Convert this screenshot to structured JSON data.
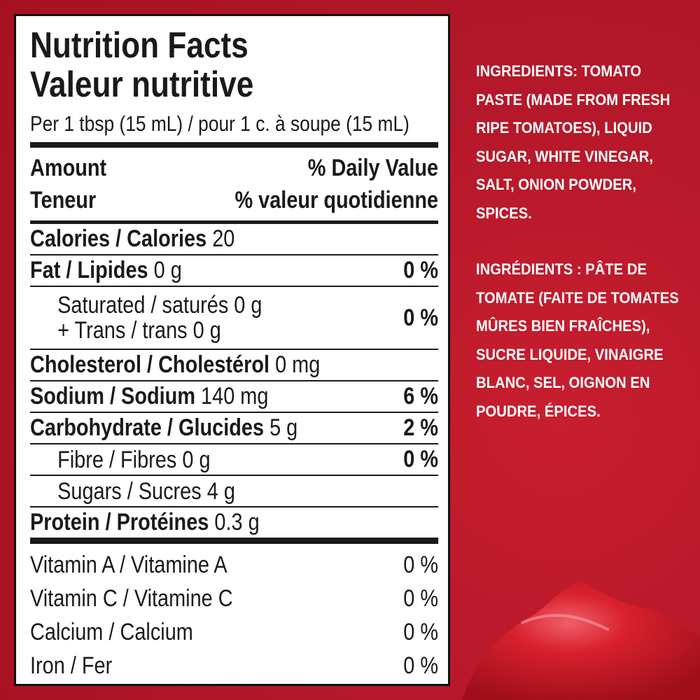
{
  "label": {
    "title": [
      "Nutrition Facts",
      "Valeur nutritive"
    ],
    "serving": "Per 1 tbsp (15 mL) / pour 1 c. à soupe (15 mL)",
    "header": {
      "amount": [
        "Amount",
        "Teneur"
      ],
      "daily_value": [
        "% Daily Value",
        "% valeur quotidienne"
      ]
    },
    "nutrients": [
      {
        "label": "Calories / Calories",
        "amount": "20"
      },
      {
        "label": "Fat / Lipides",
        "amount": "0 g",
        "dv": "0 %",
        "sub": [
          {
            "lines": [
              "Saturated / saturés 0 g",
              "+ Trans / trans 0 g"
            ],
            "dv": "0 %"
          }
        ]
      },
      {
        "label": "Cholesterol / Cholestérol",
        "amount": "0 mg"
      },
      {
        "label": "Sodium / Sodium",
        "amount": "140 mg",
        "dv": "6 %"
      },
      {
        "label": "Carbohydrate / Glucides",
        "amount": "5 g",
        "dv": "2 %",
        "sub": [
          {
            "lines": [
              "Fibre / Fibres 0 g"
            ],
            "dv": "0 %"
          },
          {
            "lines": [
              "Sugars / Sucres 4 g"
            ]
          }
        ]
      },
      {
        "label": "Protein / Protéines",
        "amount": "0.3 g"
      }
    ],
    "vitamins": [
      {
        "label": "Vitamin A / Vitamine A",
        "dv": "0 %"
      },
      {
        "label": "Vitamin C / Vitamine C",
        "dv": "0 %"
      },
      {
        "label": "Calcium / Calcium",
        "dv": "0 %"
      },
      {
        "label": "Iron / Fer",
        "dv": "0 %"
      }
    ]
  },
  "ingredients": {
    "english": "INGREDIENTS: TOMATO PASTE (MADE FROM FRESH RIPE TOMATOES), LIQUID SUGAR, WHITE VINEGAR, SALT, ONION POWDER, SPICES.",
    "french": "INGRÉDIENTS : PÂTE DE TOMATE (FAITE DE TOMATES MÛRES BIEN FRAÎCHES), SUCRE LIQUIDE, VINAIGRE BLANC, SEL, OIGNON EN POUDRE, ÉPICES."
  }
}
